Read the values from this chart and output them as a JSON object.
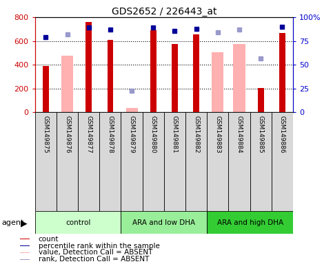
{
  "title": "GDS2652 / 226443_at",
  "samples": [
    "GSM149875",
    "GSM149876",
    "GSM149877",
    "GSM149878",
    "GSM149879",
    "GSM149880",
    "GSM149881",
    "GSM149882",
    "GSM149883",
    "GSM149884",
    "GSM149885",
    "GSM149886"
  ],
  "groups": [
    {
      "label": "control",
      "color": "#ccffcc",
      "start": 0,
      "end": 4
    },
    {
      "label": "ARA and low DHA",
      "color": "#99ee99",
      "start": 4,
      "end": 8
    },
    {
      "label": "ARA and high DHA",
      "color": "#33cc33",
      "start": 8,
      "end": 12
    }
  ],
  "count_values": [
    390,
    null,
    757,
    608,
    null,
    690,
    572,
    655,
    null,
    null,
    205,
    668
  ],
  "absent_values": [
    null,
    473,
    null,
    null,
    33,
    null,
    null,
    null,
    507,
    574,
    null,
    null
  ],
  "rank_present": [
    630,
    null,
    715,
    698,
    null,
    713,
    685,
    703,
    null,
    null,
    null,
    717
  ],
  "rank_absent": [
    null,
    655,
    null,
    null,
    182,
    null,
    null,
    null,
    673,
    695,
    450,
    null
  ],
  "ylim_left": [
    0,
    800
  ],
  "ylim_right": [
    0,
    100
  ],
  "left_ticks": [
    0,
    200,
    400,
    600,
    800
  ],
  "right_ticks": [
    0,
    25,
    50,
    75,
    100
  ],
  "left_tick_color": "#cc0000",
  "right_tick_color": "#0000cc",
  "count_color": "#cc0000",
  "absent_bar_color": "#ffb0b0",
  "rank_present_color": "#000099",
  "rank_absent_color": "#9999cc",
  "legend_items": [
    {
      "color": "#cc0000",
      "shape": "square",
      "label": "count"
    },
    {
      "color": "#000099",
      "shape": "square",
      "label": "percentile rank within the sample"
    },
    {
      "color": "#ffb0b0",
      "shape": "square",
      "label": "value, Detection Call = ABSENT"
    },
    {
      "color": "#9999cc",
      "shape": "square",
      "label": "rank, Detection Call = ABSENT"
    }
  ]
}
